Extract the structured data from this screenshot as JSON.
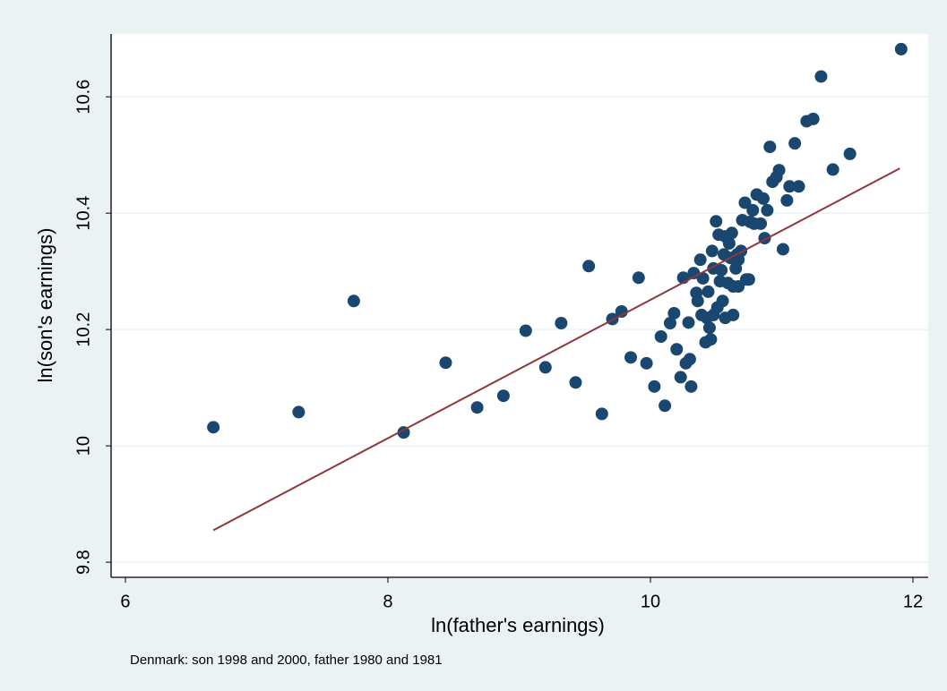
{
  "chart_data": {
    "type": "scatter",
    "xlabel": "ln(father's earnings)",
    "ylabel": "ln(son's earnings)",
    "note": "Denmark: son 1998 and 2000, father 1980 and 1981",
    "xlim": [
      5.891,
      12.116
    ],
    "xticks": [
      6,
      8,
      10,
      12
    ],
    "ylim": [
      9.774,
      10.708
    ],
    "yticks": [
      9.8,
      10,
      10.2,
      10.4,
      10.6
    ],
    "grid": true,
    "series": [
      {
        "type": "scatter",
        "color": "#1a476f",
        "x": [
          6.67,
          7.32,
          7.74,
          8.12,
          8.44,
          8.68,
          8.88,
          9.05,
          9.2,
          9.32,
          9.43,
          9.53,
          9.63,
          9.71,
          9.78,
          9.85,
          9.91,
          9.97,
          10.03,
          10.08,
          10.11,
          10.15,
          10.18,
          10.2,
          10.23,
          10.25,
          10.27,
          10.29,
          10.3,
          10.31,
          10.33,
          10.35,
          10.36,
          10.38,
          10.39,
          10.4,
          10.42,
          10.43,
          10.44,
          10.45,
          10.46,
          10.47,
          10.48,
          10.48,
          10.5,
          10.51,
          10.52,
          10.53,
          10.54,
          10.55,
          10.56,
          10.57,
          10.57,
          10.59,
          10.6,
          10.61,
          10.62,
          10.63,
          10.63,
          10.65,
          10.66,
          10.67,
          10.67,
          10.69,
          10.7,
          10.72,
          10.73,
          10.75,
          10.76,
          10.78,
          10.79,
          10.81,
          10.84,
          10.86,
          10.87,
          10.89,
          10.91,
          10.93,
          10.96,
          10.98,
          11.01,
          11.04,
          11.06,
          11.1,
          11.13,
          11.19,
          11.24,
          11.3,
          11.39,
          11.52,
          11.91
        ],
        "values": [
          10.032,
          10.058,
          10.249,
          10.023,
          10.143,
          10.066,
          10.086,
          10.198,
          10.135,
          10.211,
          10.109,
          10.309,
          10.055,
          10.218,
          10.231,
          10.152,
          10.289,
          10.142,
          10.102,
          10.188,
          10.069,
          10.211,
          10.228,
          10.166,
          10.118,
          10.289,
          10.142,
          10.212,
          10.149,
          10.102,
          10.297,
          10.263,
          10.249,
          10.32,
          10.225,
          10.288,
          10.178,
          10.22,
          10.265,
          10.203,
          10.183,
          10.335,
          10.305,
          10.225,
          10.386,
          10.238,
          10.363,
          10.283,
          10.302,
          10.249,
          10.329,
          10.22,
          10.36,
          10.28,
          10.348,
          10.323,
          10.366,
          10.274,
          10.225,
          10.305,
          10.329,
          10.274,
          10.32,
          10.335,
          10.388,
          10.418,
          10.286,
          10.286,
          10.385,
          10.405,
          10.382,
          10.432,
          10.382,
          10.425,
          10.357,
          10.405,
          10.514,
          10.454,
          10.462,
          10.474,
          10.338,
          10.422,
          10.446,
          10.52,
          10.446,
          10.558,
          10.562,
          10.635,
          10.475,
          10.502,
          10.682
        ]
      },
      {
        "type": "line",
        "color": "#90353b",
        "x": [
          6.67,
          11.9
        ],
        "values": [
          9.855,
          10.477
        ]
      }
    ]
  }
}
